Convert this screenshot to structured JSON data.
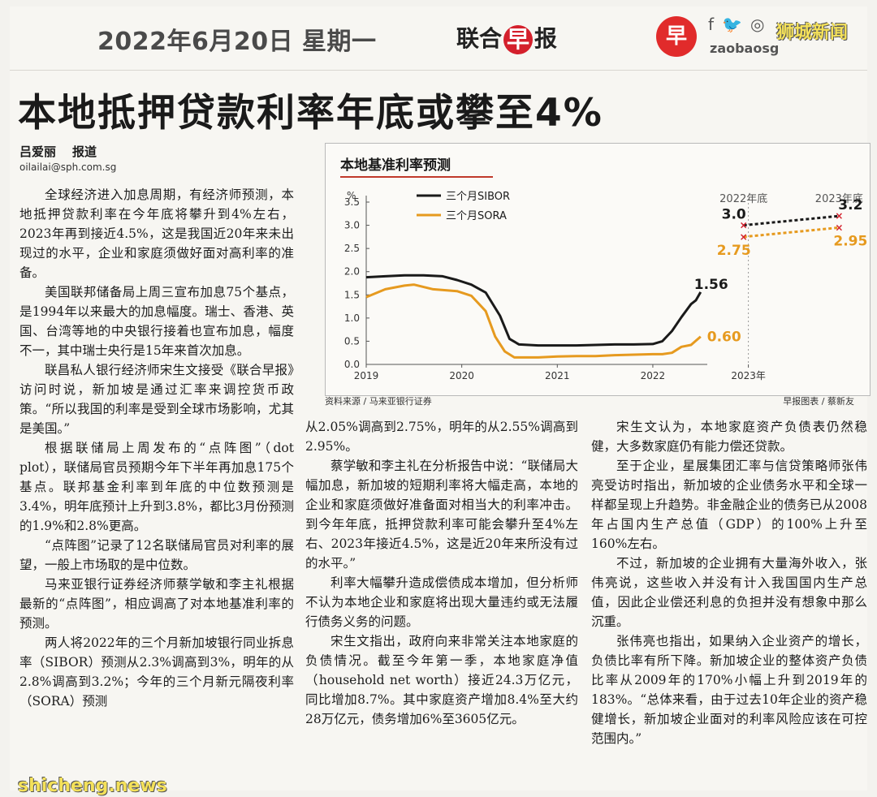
{
  "header": {
    "date": "2022年6月20日 星期一",
    "paper_prefix": "联合",
    "paper_mark": "早",
    "paper_suffix": "报",
    "logo_char": "早",
    "social_icons": [
      "facebook-icon",
      "twitter-icon",
      "instagram-icon"
    ],
    "social_glyphs": [
      "f",
      "🐦",
      "◎"
    ],
    "handle": "zaobaosg",
    "watermark": "狮城新闻"
  },
  "article": {
    "headline": "本地抵押贷款利率年底或攀至4%",
    "author": "吕爱丽",
    "author_role": "报道",
    "email": "oilailai@sph.com.sg",
    "col1": [
      "全球经济进入加息周期，有经济师预测，本地抵押贷款利率在今年底将攀升到4%左右，2023年再到接近4.5%，这是我国近20年来未出现过的水平，企业和家庭须做好面对高利率的准备。",
      "美国联邦储备局上周三宣布加息75个基点，是1994年以来最大的加息幅度。瑞士、香港、英国、台湾等地的中央银行接着也宣布加息，幅度不一，其中瑞士央行是15年来首次加息。",
      "联昌私人银行经济师宋生文接受《联合早报》访问时说，新加坡是通过汇率来调控货币政策。“所以我国的利率是受到全球市场影响，尤其是美国。”",
      "根据联储局上周发布的“点阵图”（dot plot），联储局官员预期今年下半年再加息175个基点。联邦基金利率到年底的中位数预测是3.4%，明年底预计上升到3.8%，都比3月份预测的1.9%和2.8%更高。",
      "“点阵图”记录了12名联储局官员对利率的展望，一般上市场取的是中位数。",
      "马来亚银行证券经济师蔡学敏和李主礼根据最新的“点阵图”，相应调高了对本地基准利率的预测。",
      "两人将2022年的三个月新加坡银行同业拆息率（SIBOR）预测从2.3%调高到3%，明年的从2.8%调高到3.2%；今年的三个月新元隔夜利率（SORA）预测"
    ],
    "col2_cont": "从2.05%调高到2.75%，明年的从2.55%调高到2.95%。",
    "col2": [
      "蔡学敏和李主礼在分析报告中说：“联储局大幅加息，新加坡的短期利率将大幅走高，本地的企业和家庭须做好准备面对相当大的利率冲击。到今年年底，抵押贷款利率可能会攀升至4%左右、2023年接近4.5%，这是近20年来所没有过的水平。”",
      "利率大幅攀升造成偿债成本增加，但分析师不认为本地企业和家庭将出现大量违约或无法履行债务义务的问题。",
      "宋生文指出，政府向来非常关注本地家庭的负债情况。截至今年第一季，本地家庭净值（household net worth）接近24.3万亿元，同比增加8.7%。其中家庭资产增加8.4%至大约28万亿元，债务增加6%至3605亿元。"
    ],
    "col3": [
      "宋生文认为，本地家庭资产负债表仍然稳健，大多数家庭仍有能力偿还贷款。",
      "至于企业，星展集团汇率与信贷策略师张伟亮受访时指出，新加坡的企业债务水平和全球一样都呈现上升趋势。非金融企业的债务已从2008年占国内生产总值（GDP）的100%上升至160%左右。",
      "不过，新加坡的企业拥有大量海外收入，张伟亮说，这些收入并没有计入我国国内生产总值，因此企业偿还利息的负担并没有想象中那么沉重。",
      "张伟亮也指出，如果纳入企业资产的增长，负债比率有所下降。新加坡企业的整体资产负债比率从2009年的170%小幅上升到2019年的183%。“总体来看，由于过去10年企业的资产稳健增长，新加坡企业面对的利率风险应该在可控范围内。”"
    ]
  },
  "chart_source": "资料来源 / 马来亚银行证券",
  "chart_credit": "早报图表 / 蔡新友",
  "bottom_watermark": "shicheng.news",
  "colors": {
    "sibor": "#1a1a1a",
    "sora": "#e69a1f",
    "forecast_marker": "#d4202c",
    "title_underline": "#c0392b"
  },
  "chart_data": {
    "type": "line",
    "title": "本地基准利率预测",
    "ylabel": "%",
    "ylim": [
      0,
      3.5
    ],
    "yticks": [
      "0.0",
      "0.5",
      "1.0",
      "1.5",
      "2.0",
      "2.5",
      "3.0",
      "3.5"
    ],
    "xticks": [
      "2019",
      "2020",
      "2021",
      "2022",
      "2023年"
    ],
    "xlim": [
      2019,
      2024.1
    ],
    "series": [
      {
        "name": "三个月SIBOR",
        "x": [
          2019.0,
          2019.2,
          2019.4,
          2019.6,
          2019.8,
          2019.95,
          2020.1,
          2020.25,
          2020.4,
          2020.5,
          2020.6,
          2020.8,
          2021.0,
          2021.2,
          2021.4,
          2021.6,
          2021.8,
          2022.0,
          2022.1,
          2022.2,
          2022.3,
          2022.4,
          2022.45,
          2022.5
        ],
        "y": [
          1.88,
          1.9,
          1.92,
          1.92,
          1.9,
          1.82,
          1.72,
          1.55,
          1.05,
          0.55,
          0.43,
          0.41,
          0.41,
          0.41,
          0.42,
          0.43,
          0.43,
          0.44,
          0.5,
          0.72,
          1.02,
          1.3,
          1.38,
          1.56
        ]
      },
      {
        "name": "三个月SORA",
        "x": [
          2019.0,
          2019.2,
          2019.4,
          2019.5,
          2019.7,
          2019.95,
          2020.1,
          2020.25,
          2020.35,
          2020.45,
          2020.55,
          2020.8,
          2021.0,
          2021.2,
          2021.4,
          2021.6,
          2021.8,
          2022.0,
          2022.1,
          2022.2,
          2022.3,
          2022.4,
          2022.5
        ],
        "y": [
          1.45,
          1.62,
          1.7,
          1.72,
          1.62,
          1.58,
          1.48,
          1.15,
          0.6,
          0.28,
          0.15,
          0.15,
          0.17,
          0.18,
          0.18,
          0.2,
          0.21,
          0.22,
          0.22,
          0.25,
          0.38,
          0.42,
          0.6
        ]
      }
    ],
    "annotations": [
      {
        "label": "1.56",
        "series": "三个月SIBOR"
      },
      {
        "label": "0.60",
        "series": "三个月SORA"
      }
    ],
    "forecast": {
      "period_labels": [
        "2022年底",
        "2023年底"
      ],
      "x": [
        2022.95,
        2023.95
      ],
      "sibor": [
        3.0,
        3.2
      ],
      "sora": [
        2.75,
        2.95
      ],
      "sibor_labels": [
        "3.0",
        "3.2"
      ],
      "sora_labels": [
        "2.75",
        "2.95"
      ]
    }
  }
}
